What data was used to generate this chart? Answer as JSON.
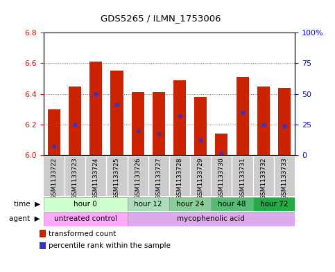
{
  "title": "GDS5265 / ILMN_1753006",
  "samples": [
    "GSM1133722",
    "GSM1133723",
    "GSM1133724",
    "GSM1133725",
    "GSM1133726",
    "GSM1133727",
    "GSM1133728",
    "GSM1133729",
    "GSM1133730",
    "GSM1133731",
    "GSM1133732",
    "GSM1133733"
  ],
  "bar_bottom": 6.0,
  "bar_tops": [
    6.3,
    6.45,
    6.61,
    6.55,
    6.41,
    6.41,
    6.49,
    6.38,
    6.14,
    6.51,
    6.45,
    6.44
  ],
  "percentile_values": [
    6.06,
    6.2,
    6.4,
    6.33,
    6.16,
    6.14,
    6.26,
    6.1,
    6.01,
    6.28,
    6.2,
    6.19
  ],
  "bar_color": "#cc2200",
  "percentile_color": "#3333cc",
  "ylim": [
    6.0,
    6.8
  ],
  "yticks_left": [
    6.0,
    6.2,
    6.4,
    6.6,
    6.8
  ],
  "yticks_right": [
    0,
    25,
    50,
    75,
    100
  ],
  "yticks_right_labels": [
    "0",
    "25",
    "50",
    "75",
    "100%"
  ],
  "time_groups": [
    {
      "label": "hour 0",
      "cols": [
        0,
        1,
        2,
        3
      ],
      "color": "#ccffcc"
    },
    {
      "label": "hour 12",
      "cols": [
        4,
        5
      ],
      "color": "#aaddbb"
    },
    {
      "label": "hour 24",
      "cols": [
        6,
        7
      ],
      "color": "#88cc99"
    },
    {
      "label": "hour 48",
      "cols": [
        8,
        9
      ],
      "color": "#55bb77"
    },
    {
      "label": "hour 72",
      "cols": [
        10,
        11
      ],
      "color": "#22aa44"
    }
  ],
  "agent_groups": [
    {
      "label": "untreated control",
      "cols": [
        0,
        1,
        2,
        3
      ],
      "color": "#ffaaff"
    },
    {
      "label": "mycophenolic acid",
      "cols": [
        4,
        5,
        6,
        7,
        8,
        9,
        10,
        11
      ],
      "color": "#ddaaee"
    }
  ],
  "legend_items": [
    {
      "label": "transformed count",
      "color": "#cc2200"
    },
    {
      "label": "percentile rank within the sample",
      "color": "#3333cc"
    }
  ],
  "bar_width": 0.6,
  "sample_bg_color": "#cccccc",
  "grid_color": "#666666"
}
